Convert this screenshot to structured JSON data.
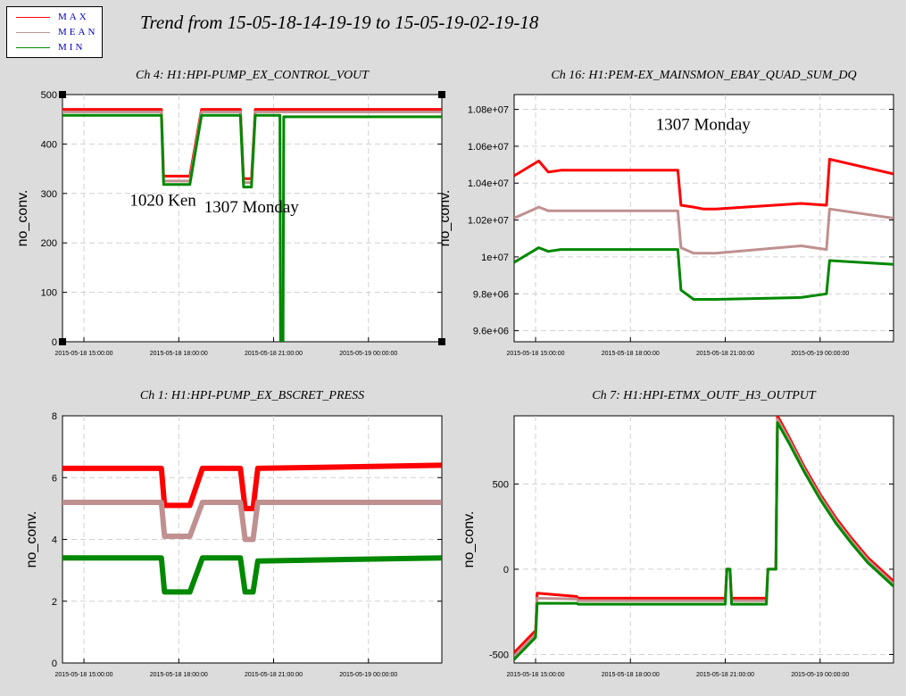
{
  "title": "Trend from 15-05-18-14-19-19 to 15-05-19-02-19-18",
  "legend": [
    {
      "label": "MAX",
      "color": "#ff0000"
    },
    {
      "label": "MEAN",
      "color": "#c09090"
    },
    {
      "label": "MIN",
      "color": "#008800"
    }
  ],
  "colors": {
    "max": "#ff0000",
    "mean": "#c09090",
    "min": "#008800",
    "background": "#dcdcdc",
    "grid": "#d0d0d0"
  },
  "chart_data": [
    {
      "type": "line",
      "title": "Ch 4: H1:HPI-PUMP_EX_CONTROL_VOUT",
      "ylabel": "no_conv.",
      "xlabel": "",
      "x_range_hours": [
        14.3219,
        26.3217
      ],
      "x_ticks": [
        "2015-05-18 15:00:00",
        "2015-05-18 18:00:00",
        "2015-05-18 21:00:00",
        "2015-05-19 00:00:00"
      ],
      "ylim": [
        0,
        500
      ],
      "y_ticks": [
        "0",
        "100",
        "200",
        "300",
        "400",
        "500"
      ],
      "grid": true,
      "series": [
        {
          "name": "MAX",
          "x_hours": [
            14.32,
            17.45,
            17.52,
            18.35,
            18.72,
            19.95,
            20.05,
            20.3,
            20.42,
            26.32
          ],
          "values": [
            470,
            470,
            335,
            335,
            470,
            470,
            330,
            330,
            470,
            470
          ]
        },
        {
          "name": "MEAN",
          "x_hours": [
            14.32,
            17.45,
            17.52,
            18.35,
            18.72,
            19.95,
            20.05,
            20.3,
            20.42,
            26.32
          ],
          "values": [
            465,
            465,
            325,
            325,
            465,
            465,
            322,
            322,
            465,
            465
          ]
        },
        {
          "name": "MIN",
          "x_hours": [
            14.32,
            17.45,
            17.52,
            18.35,
            18.72,
            19.95,
            20.05,
            20.3,
            20.42,
            21.2,
            21.22,
            21.3,
            21.32,
            26.32
          ],
          "values": [
            458,
            458,
            318,
            318,
            458,
            458,
            313,
            313,
            458,
            458,
            0,
            0,
            455,
            455
          ]
        }
      ],
      "annotations": [
        {
          "text": "1020 Ken",
          "x_hours": 17.5,
          "y": 275
        },
        {
          "text": "1307 Monday",
          "x_hours": 20.3,
          "y": 262
        }
      ]
    },
    {
      "type": "line",
      "title": "Ch 16: H1:PEM-EX_MAINSMON_EBAY_QUAD_SUM_DQ",
      "ylabel": "no_conv.",
      "xlabel": "",
      "x_range_hours": [
        14.3219,
        26.3217
      ],
      "x_ticks": [
        "2015-05-18 15:00:00",
        "2015-05-18 18:00:00",
        "2015-05-18 21:00:00",
        "2015-05-19 00:00:00"
      ],
      "ylim": [
        9540000,
        10880000
      ],
      "y_ticks": [
        "9.6e+06",
        "9.8e+06",
        "1e+07",
        "1.02e+07",
        "1.04e+07",
        "1.06e+07",
        "1.08e+07"
      ],
      "grid": true,
      "series": [
        {
          "name": "MAX",
          "x_hours": [
            14.32,
            15.1,
            15.4,
            15.8,
            19.5,
            19.6,
            20.0,
            20.3,
            20.7,
            23.4,
            24.2,
            24.3,
            26.32
          ],
          "values": [
            10440000,
            10520000,
            10460000,
            10470000,
            10470000,
            10280000,
            10270000,
            10260000,
            10260000,
            10290000,
            10280000,
            10530000,
            10450000
          ]
        },
        {
          "name": "MEAN",
          "x_hours": [
            14.32,
            15.1,
            15.4,
            15.8,
            19.5,
            19.6,
            20.0,
            20.3,
            20.7,
            23.4,
            24.2,
            24.3,
            26.32
          ],
          "values": [
            10210000,
            10270000,
            10250000,
            10250000,
            10250000,
            10050000,
            10020000,
            10020000,
            10020000,
            10060000,
            10040000,
            10260000,
            10210000
          ]
        },
        {
          "name": "MIN",
          "x_hours": [
            14.32,
            15.1,
            15.4,
            15.8,
            19.5,
            19.6,
            20.0,
            20.3,
            20.7,
            23.4,
            24.2,
            24.3,
            26.32
          ],
          "values": [
            9970000,
            10050000,
            10030000,
            10040000,
            10040000,
            9820000,
            9770000,
            9770000,
            9770000,
            9780000,
            9800000,
            9980000,
            9960000
          ]
        }
      ],
      "annotations": [
        {
          "text": "1307 Monday",
          "x_hours": 20.3,
          "y": 10690000
        }
      ]
    },
    {
      "type": "line",
      "title": "Ch 1: H1:HPI-PUMP_EX_BSCRET_PRESS",
      "ylabel": "no_conv.",
      "xlabel": "",
      "x_range_hours": [
        14.3219,
        26.3217
      ],
      "x_ticks": [
        "2015-05-18 15:00:00",
        "2015-05-18 18:00:00",
        "2015-05-18 21:00:00",
        "2015-05-19 00:00:00"
      ],
      "ylim": [
        0,
        8
      ],
      "y_ticks": [
        "0",
        "2",
        "4",
        "6",
        "8"
      ],
      "grid": true,
      "series": [
        {
          "name": "MAX",
          "x_hours": [
            14.32,
            17.45,
            17.55,
            18.35,
            18.75,
            19.95,
            20.1,
            20.35,
            20.5,
            26.32
          ],
          "values": [
            6.3,
            6.3,
            5.1,
            5.1,
            6.3,
            6.3,
            5.0,
            5.0,
            6.3,
            6.4
          ]
        },
        {
          "name": "MEAN",
          "x_hours": [
            14.32,
            17.45,
            17.55,
            18.35,
            18.75,
            19.95,
            20.1,
            20.35,
            20.5,
            26.32
          ],
          "values": [
            5.2,
            5.2,
            4.1,
            4.1,
            5.2,
            5.2,
            4.0,
            4.0,
            5.2,
            5.2
          ]
        },
        {
          "name": "MIN",
          "x_hours": [
            14.32,
            17.45,
            17.55,
            18.35,
            18.75,
            19.95,
            20.1,
            20.35,
            20.5,
            26.32
          ],
          "values": [
            3.4,
            3.4,
            2.3,
            2.3,
            3.4,
            3.4,
            2.3,
            2.3,
            3.3,
            3.4
          ]
        }
      ]
    },
    {
      "type": "line",
      "title": "Ch 7: H1:HPI-ETMX_OUTF_H3_OUTPUT",
      "ylabel": "no_conv.",
      "xlabel": "",
      "x_range_hours": [
        14.3219,
        26.3217
      ],
      "x_ticks": [
        "2015-05-18 15:00:00",
        "2015-05-18 18:00:00",
        "2015-05-18 21:00:00",
        "2015-05-19 00:00:00"
      ],
      "ylim": [
        -550,
        900
      ],
      "y_ticks": [
        "-500",
        "0",
        "500"
      ],
      "grid": true,
      "series": [
        {
          "name": "MAX",
          "x_hours": [
            14.32,
            15.0,
            15.05,
            16.3,
            16.35,
            21.0,
            21.05,
            21.15,
            21.2,
            22.3,
            22.35,
            22.6,
            22.65,
            23.0,
            23.5,
            24.0,
            24.5,
            25.0,
            25.5,
            26.32
          ],
          "values": [
            -490,
            -360,
            -140,
            -160,
            -170,
            -170,
            0,
            0,
            -170,
            -170,
            0,
            0,
            900,
            780,
            600,
            440,
            300,
            180,
            70,
            -70
          ]
        },
        {
          "name": "MEAN",
          "x_hours": [
            14.32,
            15.0,
            15.05,
            16.3,
            16.35,
            21.0,
            21.05,
            21.15,
            21.2,
            22.3,
            22.35,
            22.6,
            22.65,
            23.0,
            23.5,
            24.0,
            24.5,
            25.0,
            25.5,
            26.32
          ],
          "values": [
            -510,
            -380,
            -170,
            -175,
            -185,
            -185,
            0,
            0,
            -185,
            -185,
            0,
            0,
            880,
            765,
            585,
            425,
            285,
            165,
            55,
            -85
          ]
        },
        {
          "name": "MIN",
          "x_hours": [
            14.32,
            15.0,
            15.05,
            16.3,
            16.35,
            21.0,
            21.05,
            21.15,
            21.2,
            22.3,
            22.35,
            22.6,
            22.65,
            23.0,
            23.5,
            24.0,
            24.5,
            25.0,
            25.5,
            26.32
          ],
          "values": [
            -530,
            -400,
            -200,
            -200,
            -205,
            -205,
            0,
            0,
            -205,
            -205,
            0,
            0,
            860,
            745,
            570,
            410,
            270,
            150,
            40,
            -100
          ]
        }
      ]
    }
  ]
}
